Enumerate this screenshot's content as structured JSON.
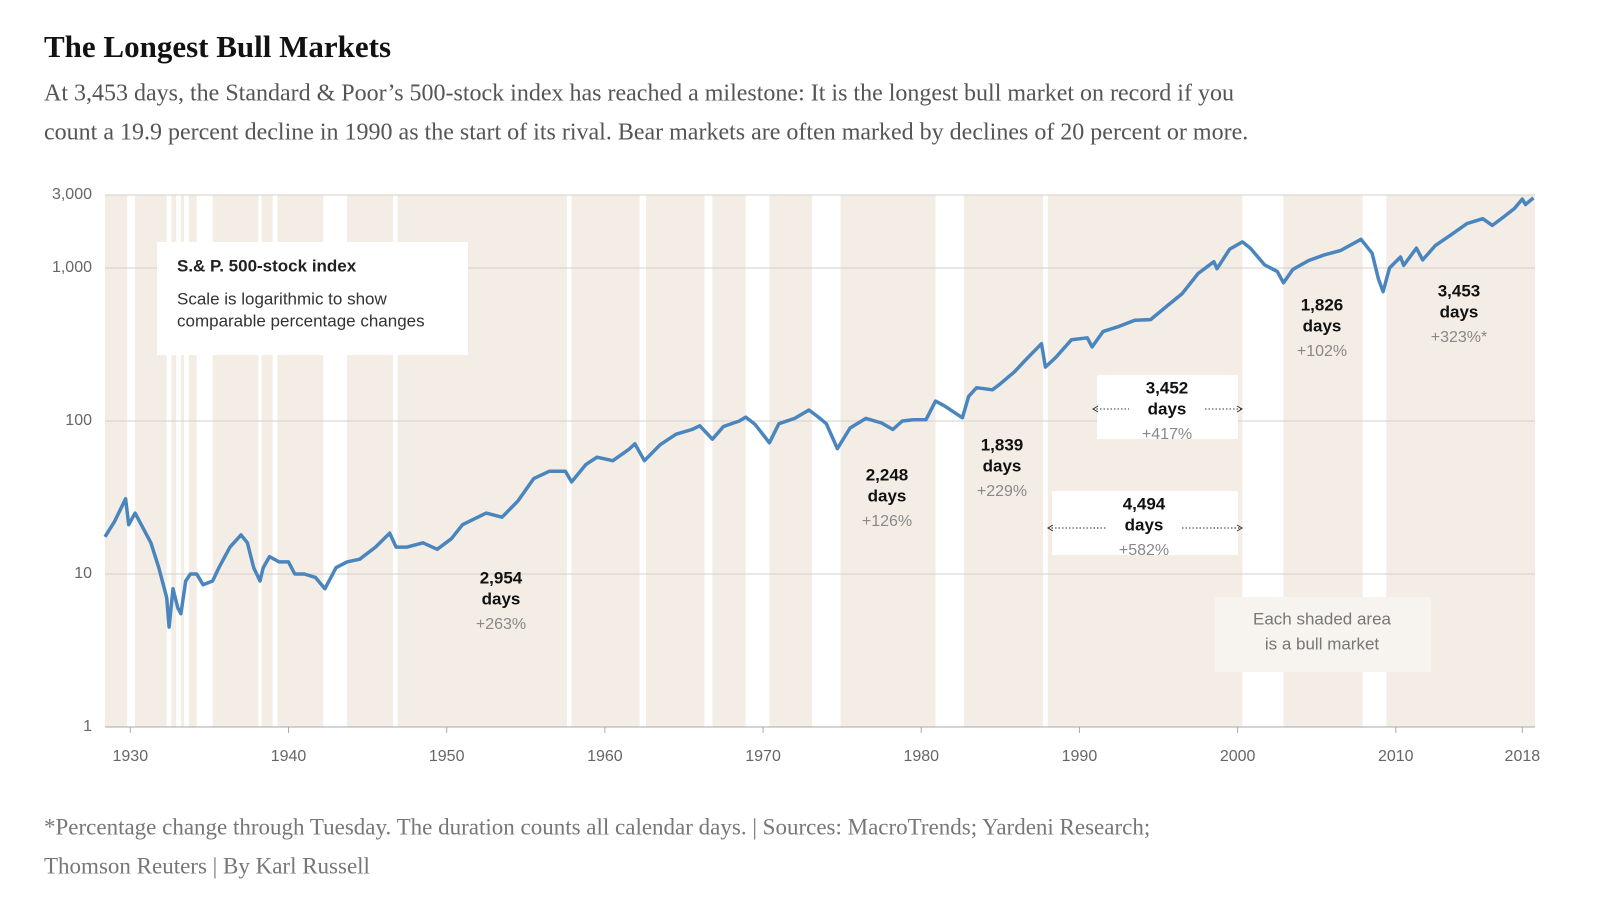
{
  "chart_data": {
    "type": "line",
    "title": "The Longest Bull Markets",
    "subtitle": [
      "At 3,453 days, the Standard & Poor’s 500-stock index has reached a milestone: It is the longest bull market on record if you",
      "count a 19.9 percent decline in 1990 as the start of its rival. Bear markets are often marked by declines of 20 percent or more."
    ],
    "footnote": [
      "*Percentage change through Tuesday. The duration counts all calendar days. | Sources: MacroTrends; Yardeni Research;",
      "Thomson Reuters | By Karl Russell"
    ],
    "legend_note": [
      "Scale is logarithmic to show",
      "comparable percentage changes"
    ],
    "shade_note": [
      "Each shaded area",
      "is a bull market"
    ],
    "yscale": "log",
    "grid": true,
    "shade_color": "#f3ede5",
    "xlim": [
      1928.4,
      2018.8
    ],
    "xticks": [
      1930,
      1940,
      1950,
      1960,
      1970,
      1980,
      1990,
      2000,
      2010,
      2018
    ],
    "ylim": [
      1,
      3000
    ],
    "yticks": [
      1,
      10,
      100,
      {
        "value": 1000,
        "label": "1,000"
      },
      {
        "value": 3000,
        "label": "3,000"
      }
    ],
    "bull_markets": [
      [
        1928.4,
        1929.8
      ],
      [
        1930.3,
        1932.3
      ],
      [
        1932.6,
        1932.9
      ],
      [
        1933.2,
        1933.4
      ],
      [
        1933.7,
        1934.2
      ],
      [
        1935.2,
        1938.1
      ],
      [
        1938.3,
        1939.0
      ],
      [
        1939.3,
        1942.2
      ],
      [
        1943.7,
        1946.6
      ],
      [
        1946.9,
        1957.6
      ],
      [
        1957.9,
        1962.2
      ],
      [
        1962.6,
        1966.3
      ],
      [
        1966.8,
        1968.9
      ],
      [
        1970.4,
        1973.1
      ],
      [
        1974.9,
        1980.9
      ],
      [
        1982.7,
        1987.7
      ],
      [
        1988.0,
        2000.3
      ],
      [
        2002.9,
        2007.9
      ],
      [
        2009.4,
        2018.8
      ]
    ],
    "annotations": [
      {
        "days": "2,954",
        "unit": "days",
        "change": "+263%"
      },
      {
        "days": "2,248",
        "unit": "days",
        "change": "+126%"
      },
      {
        "days": "1,839",
        "unit": "days",
        "change": "+229%"
      },
      {
        "days": "3,452",
        "unit": "days",
        "change": "+417%"
      },
      {
        "days": "4,494",
        "unit": "days",
        "change": "+582%"
      },
      {
        "days": "1,826",
        "unit": "days",
        "change": "+102%"
      },
      {
        "days": "3,453",
        "unit": "days",
        "change": "+323%*"
      }
    ],
    "series": [
      {
        "name": "S.& P. 500-stock index",
        "color": "#4a86bd",
        "x": [
          1928.4,
          1929.0,
          1929.7,
          1929.9,
          1930.3,
          1930.8,
          1931.3,
          1931.8,
          1932.3,
          1932.45,
          1932.7,
          1933.0,
          1933.2,
          1933.5,
          1933.8,
          1934.2,
          1934.6,
          1935.2,
          1935.6,
          1936.3,
          1937.0,
          1937.4,
          1937.8,
          1938.2,
          1938.4,
          1938.8,
          1939.4,
          1940.0,
          1940.4,
          1941.0,
          1941.7,
          1942.3,
          1943.0,
          1943.7,
          1944.5,
          1945.5,
          1946.4,
          1946.8,
          1947.5,
          1948.5,
          1949.4,
          1950.3,
          1951.0,
          1952.5,
          1953.5,
          1954.5,
          1955.5,
          1956.5,
          1957.5,
          1957.9,
          1958.8,
          1959.5,
          1960.5,
          1961.5,
          1961.9,
          1962.5,
          1963.5,
          1964.5,
          1965.5,
          1966.0,
          1966.8,
          1967.5,
          1968.5,
          1968.9,
          1969.5,
          1970.4,
          1971.0,
          1972.0,
          1972.9,
          1973.5,
          1974.0,
          1974.7,
          1975.5,
          1976.5,
          1977.5,
          1978.2,
          1978.8,
          1979.5,
          1980.3,
          1980.9,
          1981.5,
          1982.6,
          1983.0,
          1983.5,
          1984.5,
          1985.0,
          1985.9,
          1986.5,
          1987.6,
          1987.85,
          1988.5,
          1989.5,
          1990.5,
          1990.8,
          1991.5,
          1992.5,
          1993.5,
          1994.5,
          1995.5,
          1996.5,
          1997.5,
          1998.5,
          1998.7,
          1999.5,
          2000.3,
          2000.8,
          2001.7,
          2002.5,
          2002.9,
          2003.5,
          2004.5,
          2005.5,
          2006.5,
          2007.8,
          2008.5,
          2008.9,
          2009.2,
          2009.6,
          2010.3,
          2010.5,
          2011.3,
          2011.7,
          2012.5,
          2013.5,
          2014.5,
          2015.5,
          2016.1,
          2016.8,
          2017.5,
          2018.0,
          2018.2,
          2018.7
        ],
        "values": [
          17.5,
          22,
          31,
          21,
          25,
          20,
          16,
          11,
          7,
          4.5,
          8,
          6,
          5.5,
          9,
          10,
          10,
          8.5,
          9,
          11,
          15,
          18,
          16,
          11,
          9,
          11,
          13,
          12,
          12,
          10,
          10,
          9.5,
          8,
          11,
          12,
          12.5,
          15,
          18.5,
          15,
          15,
          16,
          14.5,
          17,
          21,
          25,
          23.5,
          30,
          42,
          47,
          47,
          40,
          52,
          58,
          55,
          65,
          71,
          55,
          70,
          82,
          88,
          93,
          76,
          92,
          100,
          106,
          95,
          72,
          96,
          104,
          118,
          106,
          96,
          66,
          90,
          104,
          97,
          88,
          100,
          102,
          102,
          135,
          125,
          105,
          145,
          165,
          160,
          175,
          210,
          245,
          320,
          225,
          260,
          340,
          350,
          305,
          385,
          415,
          455,
          460,
          560,
          680,
          920,
          1100,
          990,
          1330,
          1480,
          1350,
          1050,
          950,
          800,
          980,
          1120,
          1220,
          1300,
          1540,
          1250,
          850,
          700,
          1000,
          1180,
          1040,
          1350,
          1130,
          1400,
          1650,
          1950,
          2100,
          1900,
          2150,
          2450,
          2820,
          2600,
          2870
        ]
      }
    ]
  }
}
